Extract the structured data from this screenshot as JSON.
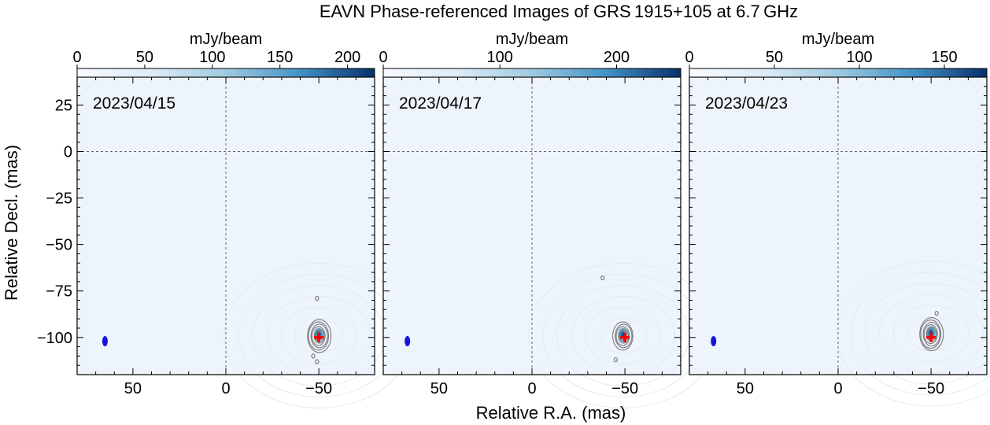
{
  "chart_data": {
    "type": "contour-image",
    "title": "EAVN Phase-referenced Images of GRS 1915+105 at 6.7 GHz",
    "xlabel": "Relative R.A. (mas)",
    "ylabel": "Relative Decl. (mas)",
    "colorbar_label": "mJy/beam",
    "xlim": [
      80,
      -80
    ],
    "ylim": [
      -120,
      40
    ],
    "x_ticks": [
      50,
      0,
      -50
    ],
    "y_ticks": [
      25,
      0,
      -25,
      -50,
      -75,
      -100
    ],
    "panels": [
      {
        "date": "2023/04/15",
        "colorbar_range": [
          0,
          220
        ],
        "colorbar_ticks": [
          0,
          50,
          100,
          150,
          200
        ],
        "source_position": [
          -50,
          -99
        ],
        "target_marker": [
          -50,
          -100
        ],
        "beam_position": [
          65,
          -102
        ],
        "source_contour_levels": 6,
        "extra_contours": [
          [
            -49,
            -79
          ],
          [
            -49,
            -113
          ],
          [
            -47,
            -110
          ]
        ]
      },
      {
        "date": "2023/04/17",
        "colorbar_range": [
          0,
          255
        ],
        "colorbar_ticks": [
          0,
          100,
          200
        ],
        "source_position": [
          -49,
          -99
        ],
        "target_marker": [
          -50,
          -100
        ],
        "beam_position": [
          67,
          -102
        ],
        "source_contour_levels": 5,
        "extra_contours": [
          [
            -38,
            -68
          ],
          [
            -45,
            -112
          ]
        ]
      },
      {
        "date": "2023/04/23",
        "colorbar_range": [
          0,
          175
        ],
        "colorbar_ticks": [
          0,
          50,
          100,
          150
        ],
        "source_position": [
          -50,
          -98
        ],
        "target_marker": [
          -50,
          -100
        ],
        "beam_position": [
          67,
          -102
        ],
        "source_contour_levels": 6,
        "extra_contours": [
          [
            -53,
            -87
          ]
        ]
      }
    ]
  },
  "colors": {
    "background_map": "#eef4fb",
    "contour": "#7a7a7a",
    "beam": "#1414e0",
    "marker": "#ff0000",
    "colormap_low": "#f7fbff",
    "colormap_mid": "#6baed6",
    "colormap_high": "#08306b"
  }
}
